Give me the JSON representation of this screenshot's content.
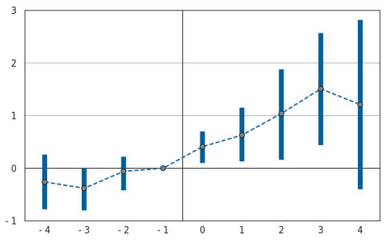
{
  "chart_data": {
    "type": "line",
    "title": "",
    "xlabel": "",
    "ylabel": "",
    "x": [
      -4,
      -3,
      -2,
      -1,
      0,
      1,
      2,
      3,
      4
    ],
    "xtick_labels": [
      "- 4",
      "- 3",
      "- 2",
      "- 1",
      "0",
      "1",
      "2",
      "3",
      "4"
    ],
    "ytick_values": [
      -1,
      0,
      1,
      2,
      3
    ],
    "ytick_labels": [
      "- 1",
      "0",
      "1",
      "2",
      "3"
    ],
    "ylim": [
      -1,
      3
    ],
    "grid": "horizontal",
    "reference_lines": {
      "x": -0.5,
      "y": 0
    },
    "series": [
      {
        "values": [
          -0.26,
          -0.38,
          -0.06,
          0.0,
          0.41,
          0.63,
          1.04,
          1.51,
          1.21
        ],
        "ci_low": [
          -0.78,
          -0.8,
          -0.42,
          0.0,
          0.1,
          0.13,
          0.16,
          0.44,
          -0.4
        ],
        "ci_high": [
          0.26,
          0.0,
          0.22,
          0.0,
          0.7,
          1.15,
          1.88,
          2.57,
          2.82
        ]
      }
    ],
    "colors": {
      "line": "#1f6aa5",
      "error_bar": "#00609c",
      "marker_fill": "#6e8a8a",
      "marker_stroke": "#1a1a1a",
      "axis": "#1a1a1a",
      "grid": "#b0b0b0"
    }
  }
}
